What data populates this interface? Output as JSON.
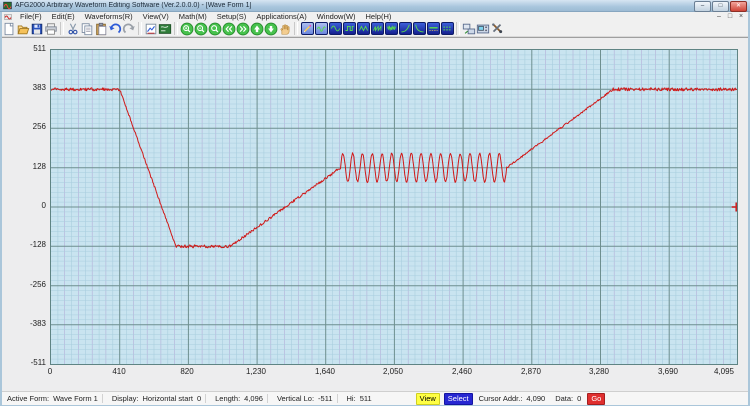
{
  "window": {
    "title": "AFG2000 Arbitrary Waveform Editing Software (Ver.2.0.0.0) - [Wave Form 1]",
    "controls": [
      {
        "name": "minimize",
        "glyph": "–"
      },
      {
        "name": "maximize",
        "glyph": "□"
      },
      {
        "name": "close",
        "glyph": "✕"
      }
    ]
  },
  "menu": {
    "items": [
      "File(F)",
      "Edit(E)",
      "Waveforms(R)",
      "View(V)",
      "Math(M)",
      "Setup(S)",
      "Applications(A)",
      "Window(W)",
      "Help(H)"
    ],
    "child_controls": [
      {
        "name": "child-minimize",
        "glyph": "–"
      },
      {
        "name": "child-restore",
        "glyph": "□"
      },
      {
        "name": "child-close",
        "glyph": "×"
      }
    ]
  },
  "toolbar": {
    "icons": [
      {
        "name": "new-file-icon",
        "glyph": "newfile"
      },
      {
        "name": "open-file-icon",
        "glyph": "open"
      },
      {
        "name": "save-file-icon",
        "glyph": "save"
      },
      {
        "name": "print-icon",
        "glyph": "print"
      },
      {
        "sep": true
      },
      {
        "name": "cut-icon",
        "glyph": "cut"
      },
      {
        "name": "copy-icon",
        "glyph": "copy"
      },
      {
        "name": "paste-icon",
        "glyph": "paste"
      },
      {
        "name": "undo-icon",
        "glyph": "undo"
      },
      {
        "name": "redo-icon",
        "glyph": "redo"
      },
      {
        "sep": true
      },
      {
        "name": "waveform-preview-icon",
        "glyph": "preview"
      },
      {
        "name": "board-view-icon",
        "glyph": "board"
      },
      {
        "sep": true
      },
      {
        "name": "zoom-in-icon",
        "glyph": "zoomin"
      },
      {
        "name": "zoom-out-icon",
        "glyph": "zoomout"
      },
      {
        "name": "zoom-reset-icon",
        "glyph": "zoomreset"
      },
      {
        "name": "scroll-left-icon",
        "glyph": "left"
      },
      {
        "name": "scroll-right-icon",
        "glyph": "right"
      },
      {
        "name": "scroll-up-icon",
        "glyph": "up"
      },
      {
        "name": "scroll-down-icon",
        "glyph": "down"
      },
      {
        "name": "pan-hand-icon",
        "glyph": "hand"
      },
      {
        "sep": true
      },
      {
        "name": "draw-pencil-icon",
        "glyph": "pencil",
        "style": "blue",
        "selected": true
      },
      {
        "name": "draw-freehand-icon",
        "glyph": "freehand",
        "style": "blue",
        "selected": true
      },
      {
        "name": "insert-sine-icon",
        "glyph": "sine",
        "style": "blue"
      },
      {
        "name": "insert-square-icon",
        "glyph": "square",
        "style": "blue"
      },
      {
        "name": "insert-triangle-icon",
        "glyph": "triangle",
        "style": "blue"
      },
      {
        "name": "insert-sawtooth-icon",
        "glyph": "sawtooth",
        "style": "blue"
      },
      {
        "name": "insert-noise-icon",
        "glyph": "noisewave",
        "style": "blue"
      },
      {
        "name": "insert-exp-rise-icon",
        "glyph": "exprise",
        "style": "blue"
      },
      {
        "name": "insert-exp-decay-icon",
        "glyph": "expdecay",
        "style": "blue"
      },
      {
        "name": "insert-dc-level-icon",
        "glyph": "dclevel",
        "style": "blue"
      },
      {
        "name": "insert-dc-dashed-icon",
        "glyph": "dcdash",
        "style": "blue"
      },
      {
        "sep": true
      },
      {
        "name": "send-to-device-icon",
        "glyph": "senddev"
      },
      {
        "name": "device-panel-icon",
        "glyph": "device"
      },
      {
        "name": "tools-icon",
        "glyph": "tools"
      }
    ]
  },
  "chart_data": {
    "type": "line",
    "title": "Wave Form 1",
    "xlabel": "",
    "ylabel": "",
    "xlim": [
      0,
      4095
    ],
    "ylim": [
      -511,
      511
    ],
    "grid": true,
    "legend_position": "none",
    "x_ticks": [
      "0",
      "410",
      "820",
      "1,230",
      "1,640",
      "2,050",
      "2,460",
      "2,870",
      "3,280",
      "3,690",
      "4,095"
    ],
    "x_tick_values": [
      0,
      410,
      820,
      1230,
      1640,
      2050,
      2460,
      2870,
      3280,
      3690,
      4095
    ],
    "y_ticks": [
      "511",
      "383",
      "256",
      "128",
      "0",
      "-128",
      "-256",
      "-383",
      "-511"
    ],
    "y_tick_values": [
      511,
      383,
      256,
      128,
      0,
      -128,
      -256,
      -383,
      -511
    ],
    "colors": {
      "plot_bg": "#c9e4f0",
      "grid_minor": "#a9cede",
      "grid_minor_alt": "#b4aed8",
      "grid_major": "#6e8f8f",
      "plot_border": "#5f8484"
    },
    "series": [
      {
        "name": "Wave Form 1",
        "color": "#d01818",
        "segments": [
          {
            "type": "flat",
            "x0": 0,
            "x1": 410,
            "value": 383,
            "noise": 5
          },
          {
            "type": "ramp",
            "x0": 410,
            "x1": 745,
            "from": 383,
            "to": -128,
            "noise": 3
          },
          {
            "type": "flat",
            "x0": 745,
            "x1": 1070,
            "value": -128,
            "noise": 5
          },
          {
            "type": "ramp",
            "x0": 1070,
            "x1": 1728,
            "from": -128,
            "to": 128,
            "noise": 4
          },
          {
            "type": "sine",
            "x0": 1728,
            "x1": 2720,
            "center": 128,
            "amplitude": 46,
            "cycles": 17,
            "noise": 3
          },
          {
            "type": "ramp",
            "x0": 2720,
            "x1": 3355,
            "from": 128,
            "to": 383,
            "noise": 3
          },
          {
            "type": "flat",
            "x0": 3355,
            "x1": 4095,
            "value": 383,
            "noise": 5
          }
        ]
      }
    ],
    "cursor": {
      "x": 4090,
      "y": 0,
      "color": "#cc2222"
    }
  },
  "statusbar": {
    "active_form_label": "Active Form:",
    "active_form_value": "Wave Form 1",
    "display_label": "Display:",
    "display_field": "Horizontal start",
    "display_value": "0",
    "length_label": "Length:",
    "length_value": "4,096",
    "vertical_lo_label": "Vertical Lo:",
    "vertical_lo_value": "-511",
    "hi_label": "Hi:",
    "hi_value": "511",
    "view_button": "View",
    "select_button": "Select",
    "cursor_label": "Cursor Addr.:",
    "cursor_value": "4,090",
    "data_label": "Data:",
    "data_value": "0",
    "go_button": "Go"
  }
}
